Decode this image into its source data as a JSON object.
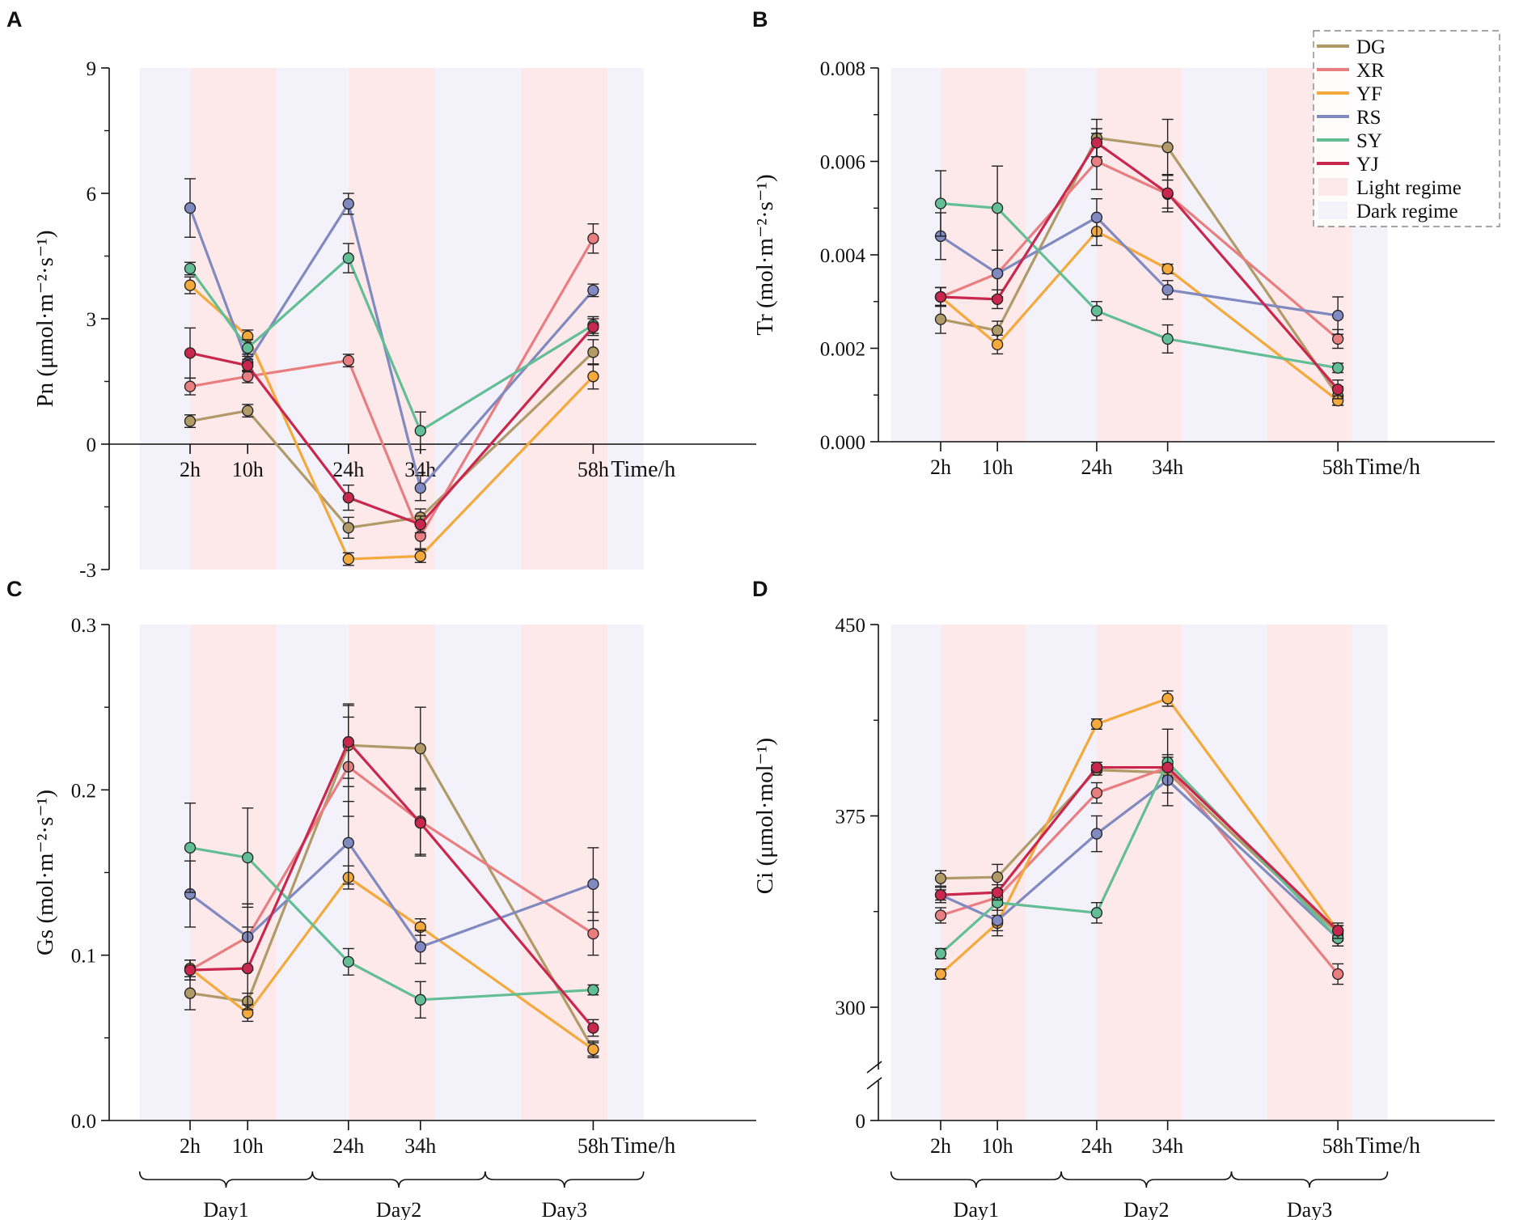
{
  "colors": {
    "DG": "#b09a68",
    "XR": "#e87e80",
    "YF": "#f3a93b",
    "RS": "#8089c0",
    "SY": "#63be96",
    "YJ": "#c8284e",
    "light_regime": "#fde8ea",
    "dark_regime": "#f3f1fa"
  },
  "x_hours": [
    2,
    10,
    24,
    34,
    58
  ],
  "x_tick_labels": [
    "2h",
    "10h",
    "24h",
    "34h",
    "58h"
  ],
  "x_axis_title": "Time/h",
  "regimes": [
    {
      "type": "dark",
      "from": -5,
      "to": 2
    },
    {
      "type": "light",
      "from": 2,
      "to": 14
    },
    {
      "type": "dark",
      "from": 14,
      "to": 24
    },
    {
      "type": "light",
      "from": 24,
      "to": 36
    },
    {
      "type": "dark",
      "from": 36,
      "to": 48
    },
    {
      "type": "light",
      "from": 48,
      "to": 60
    },
    {
      "type": "dark",
      "from": 60,
      "to": 65
    }
  ],
  "legend": {
    "entries": [
      {
        "label": "DG",
        "kind": "line",
        "series": "DG"
      },
      {
        "label": "XR",
        "kind": "line",
        "series": "XR"
      },
      {
        "label": "YF",
        "kind": "line",
        "series": "YF"
      },
      {
        "label": "RS",
        "kind": "line",
        "series": "RS"
      },
      {
        "label": "SY",
        "kind": "line",
        "series": "SY"
      },
      {
        "label": "YJ",
        "kind": "line",
        "series": "YJ"
      },
      {
        "label": "Light regime",
        "kind": "patch",
        "series": "light_regime"
      },
      {
        "label": "Dark regime",
        "kind": "patch",
        "series": "dark_regime"
      }
    ]
  },
  "day_labels": [
    {
      "label": "Day1",
      "from": -5,
      "to": 19
    },
    {
      "label": "Day2",
      "from": 19,
      "to": 43
    },
    {
      "label": "Day3",
      "from": 43,
      "to": 65
    }
  ],
  "chart_data": [
    {
      "panel": "A",
      "type": "line",
      "ylabel": "Pn (μmol·m⁻²·s⁻¹)",
      "ylim": [
        -3,
        9
      ],
      "yticks": [
        -3,
        0,
        3,
        6,
        9
      ],
      "ytick_labels": [
        "-3",
        "0",
        "3",
        "6",
        "9"
      ],
      "x_axis_at_zero": true,
      "legend_in_panel": false,
      "series": [
        {
          "name": "DG",
          "values": [
            0.55,
            0.8,
            -2.0,
            -1.75,
            2.2
          ],
          "errors": [
            0.15,
            0.15,
            0.25,
            0.2,
            0.3
          ]
        },
        {
          "name": "XR",
          "values": [
            1.38,
            1.62,
            2.0,
            -2.2,
            4.92
          ],
          "errors": [
            0.2,
            0.15,
            0.15,
            0.3,
            0.35
          ]
        },
        {
          "name": "YF",
          "values": [
            3.8,
            2.58,
            -2.75,
            -2.68,
            1.62
          ],
          "errors": [
            0.2,
            0.15,
            0.15,
            0.15,
            0.3
          ]
        },
        {
          "name": "RS",
          "values": [
            5.65,
            1.95,
            5.75,
            -1.05,
            3.68
          ],
          "errors": [
            0.7,
            0.2,
            0.25,
            0.3,
            0.15
          ]
        },
        {
          "name": "SY",
          "values": [
            4.2,
            2.3,
            4.45,
            0.32,
            2.85
          ],
          "errors": [
            0.15,
            0.2,
            0.35,
            0.45,
            0.2
          ]
        },
        {
          "name": "YJ",
          "values": [
            2.18,
            1.88,
            -1.28,
            -1.92,
            2.8
          ],
          "errors": [
            0.6,
            0.15,
            0.3,
            0.2,
            0.2
          ]
        }
      ]
    },
    {
      "panel": "B",
      "type": "line",
      "ylabel": "Tr (mol·m⁻²·s⁻¹)",
      "ylim": [
        0,
        0.008
      ],
      "yticks": [
        0,
        0.002,
        0.004,
        0.006,
        0.008
      ],
      "ytick_labels": [
        "0.000",
        "0.002",
        "0.004",
        "0.006",
        "0.008"
      ],
      "x_axis_at_zero": false,
      "legend_in_panel": true,
      "series": [
        {
          "name": "DG",
          "values": [
            0.00262,
            0.00238,
            0.0065,
            0.0063,
            0.00098
          ],
          "errors": [
            0.0003,
            0.0002,
            0.0004,
            0.0006,
            0.0002
          ]
        },
        {
          "name": "XR",
          "values": [
            0.0031,
            0.0036,
            0.006,
            0.0053,
            0.0022
          ],
          "errors": [
            0.0002,
            0.0005,
            0.0006,
            0.0003,
            0.0002
          ]
        },
        {
          "name": "YF",
          "values": [
            0.0031,
            0.00208,
            0.0045,
            0.0037,
            0.00088
          ],
          "errors": [
            0.0002,
            0.0002,
            0.0003,
            0.0001,
            0.0001
          ]
        },
        {
          "name": "RS",
          "values": [
            0.0044,
            0.0036,
            0.0048,
            0.00325,
            0.0027
          ],
          "errors": [
            0.0005,
            0.0005,
            0.0004,
            0.0002,
            0.0004
          ]
        },
        {
          "name": "SY",
          "values": [
            0.0051,
            0.005,
            0.0028,
            0.0022,
            0.00158
          ],
          "errors": [
            0.0007,
            0.0009,
            0.0002,
            0.0003,
            0.0001
          ]
        },
        {
          "name": "YJ",
          "values": [
            0.0031,
            0.00305,
            0.0064,
            0.00532,
            0.00112
          ],
          "errors": [
            0.0002,
            0.0002,
            0.0003,
            0.0004,
            0.0002
          ]
        }
      ]
    },
    {
      "panel": "C",
      "type": "line",
      "ylabel": "Gs (mol·m⁻²·s⁻¹)",
      "ylim": [
        0,
        0.3
      ],
      "yticks": [
        0,
        0.1,
        0.2,
        0.3
      ],
      "ytick_labels": [
        "0.0",
        "0.1",
        "0.2",
        "0.3"
      ],
      "x_axis_at_zero": false,
      "legend_in_panel": false,
      "series": [
        {
          "name": "DG",
          "values": [
            0.077,
            0.072,
            0.227,
            0.225,
            0.043
          ],
          "errors": [
            0.01,
            0.005,
            0.025,
            0.025,
            0.005
          ]
        },
        {
          "name": "XR",
          "values": [
            0.091,
            0.111,
            0.214,
            0.181,
            0.113
          ],
          "errors": [
            0.006,
            0.02,
            0.03,
            0.02,
            0.013
          ]
        },
        {
          "name": "YF",
          "values": [
            0.092,
            0.065,
            0.147,
            0.117,
            0.043
          ],
          "errors": [
            0.005,
            0.005,
            0.007,
            0.005,
            0.004
          ]
        },
        {
          "name": "RS",
          "values": [
            0.137,
            0.111,
            0.168,
            0.105,
            0.143
          ],
          "errors": [
            0.02,
            0.02,
            0.025,
            0.01,
            0.022
          ]
        },
        {
          "name": "SY",
          "values": [
            0.165,
            0.159,
            0.096,
            0.073,
            0.079
          ],
          "errors": [
            0.027,
            0.03,
            0.008,
            0.011,
            0.003
          ]
        },
        {
          "name": "YJ",
          "values": [
            0.091,
            0.092,
            0.229,
            0.18,
            0.056
          ],
          "errors": [
            0.006,
            0.025,
            0.022,
            0.02,
            0.005
          ]
        }
      ]
    },
    {
      "panel": "D",
      "type": "line",
      "ylabel": "Ci (μmol·mol⁻¹)",
      "ylim": [
        300,
        450
      ],
      "yticks": [
        300,
        375,
        450
      ],
      "ytick_labels": [
        "300",
        "375",
        "450"
      ],
      "axis_break": true,
      "below_break_tick_label": "0",
      "x_axis_at_zero": false,
      "legend_in_panel": false,
      "series": [
        {
          "name": "DG",
          "values": [
            350.5,
            351,
            393,
            392,
            329
          ],
          "errors": [
            3,
            5,
            2,
            3,
            3
          ]
        },
        {
          "name": "XR",
          "values": [
            336,
            343,
            384,
            394,
            313
          ],
          "errors": [
            3,
            3,
            4,
            4,
            4
          ]
        },
        {
          "name": "YF",
          "values": [
            313,
            333,
            411,
            421,
            330
          ],
          "errors": [
            2,
            3,
            2,
            3,
            2
          ]
        },
        {
          "name": "RS",
          "values": [
            344,
            334,
            368,
            389,
            327
          ],
          "errors": [
            3,
            6,
            7,
            5,
            3
          ]
        },
        {
          "name": "SY",
          "values": [
            321,
            341,
            337,
            396,
            327
          ],
          "errors": [
            2,
            3,
            4,
            3,
            3
          ]
        },
        {
          "name": "YJ",
          "values": [
            344,
            345,
            394,
            394,
            330
          ],
          "errors": [
            2,
            3,
            2,
            15,
            3
          ]
        }
      ]
    }
  ]
}
